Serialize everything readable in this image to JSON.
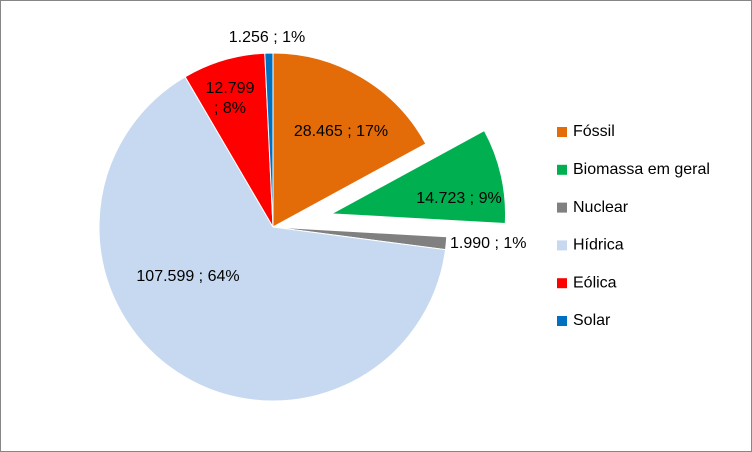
{
  "chart_data": {
    "type": "pie",
    "categories": [
      "Fóssil",
      "Biomassa em geral",
      "Nuclear",
      "Hídrica",
      "Eólica",
      "Solar"
    ],
    "values": [
      28465,
      14723,
      1990,
      107599,
      12799,
      1256
    ],
    "value_labels": [
      "28.465 ; 17%",
      "14.723 ; 9%",
      "1.990 ; 1%",
      "107.599 ; 64%",
      "12.799 ; 8%",
      "1.256 ; 1%"
    ],
    "colors": [
      "#E36C09",
      "#00B050",
      "#808080",
      "#C6D9F1",
      "#FF0000",
      "#0070C0"
    ],
    "exploded": [
      false,
      true,
      false,
      false,
      false,
      false
    ],
    "legend": "right"
  }
}
